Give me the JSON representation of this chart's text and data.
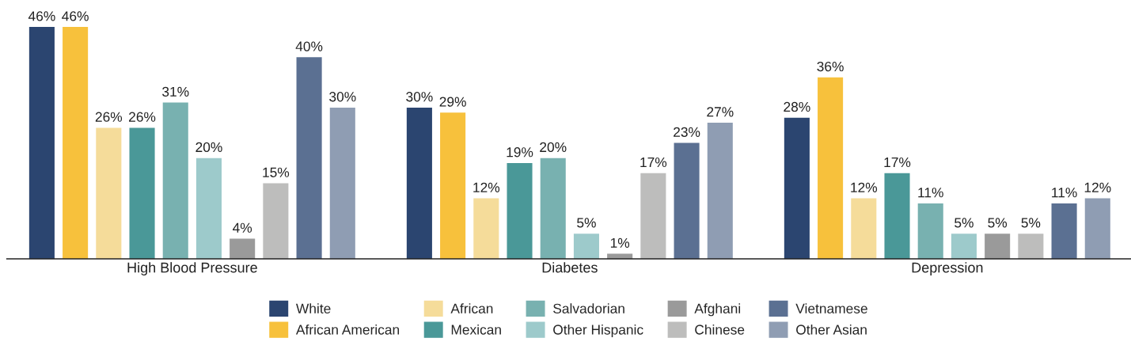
{
  "chart_data": {
    "type": "bar",
    "categories": [
      "High Blood Pressure",
      "Diabetes",
      "Depression"
    ],
    "series": [
      {
        "name": "White",
        "color": "#2b4570",
        "values": [
          46,
          30,
          28
        ],
        "value_labels": [
          "46%",
          "30%",
          "28%"
        ]
      },
      {
        "name": "African American",
        "color": "#f7c13c",
        "values": [
          46,
          29,
          36
        ],
        "value_labels": [
          "46%",
          "29%",
          "36%"
        ]
      },
      {
        "name": "African",
        "color": "#f5dc9a",
        "values": [
          26,
          12,
          12
        ],
        "value_labels": [
          "26%",
          "12%",
          "12%"
        ]
      },
      {
        "name": "Mexican",
        "color": "#4a9898",
        "values": [
          26,
          19,
          17
        ],
        "value_labels": [
          "26%",
          "19%",
          "17%"
        ]
      },
      {
        "name": "Salvadorian",
        "color": "#78b1b0",
        "values": [
          31,
          20,
          11
        ],
        "value_labels": [
          "31%",
          "20%",
          "11%"
        ]
      },
      {
        "name": "Other Hispanic",
        "color": "#9dcacb",
        "values": [
          20,
          5,
          5
        ],
        "value_labels": [
          "20%",
          "5%",
          "5%"
        ]
      },
      {
        "name": "Afghani",
        "color": "#9a9a9a",
        "values": [
          4,
          1,
          5
        ],
        "value_labels": [
          "4%",
          "1%",
          "5%"
        ]
      },
      {
        "name": "Chinese",
        "color": "#bdbdbc",
        "values": [
          15,
          17,
          5
        ],
        "value_labels": [
          "15%",
          "17%",
          "5%"
        ]
      },
      {
        "name": "Vietnamese",
        "color": "#5b7092",
        "values": [
          40,
          23,
          11
        ],
        "value_labels": [
          "40%",
          "23%",
          "11%"
        ]
      },
      {
        "name": "Other Asian",
        "color": "#8f9db3",
        "values": [
          30,
          27,
          12
        ],
        "value_labels": [
          "30%",
          "27%",
          "12%"
        ]
      }
    ],
    "legend": "bottom",
    "grid": false
  }
}
